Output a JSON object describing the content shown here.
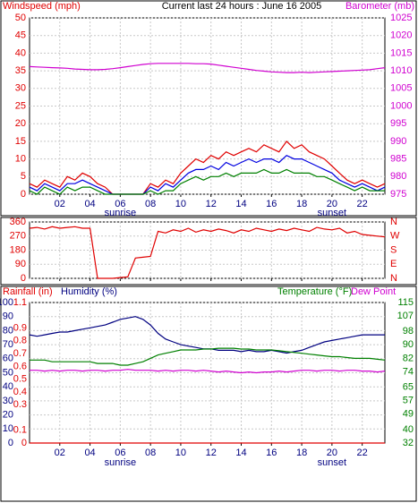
{
  "chart_data": [
    {
      "type": "line",
      "title": "Current last 24 hours : June 16 2005",
      "y_label": "Windspeed (mph)",
      "y2_label": "Barometer (mb)",
      "y_color": "#e00000",
      "y2_color": "#d000d0",
      "x": [
        0,
        0.5,
        1,
        1.5,
        2,
        2.5,
        3,
        3.5,
        4,
        4.5,
        5,
        5.5,
        6,
        6.5,
        7,
        7.5,
        8,
        8.5,
        9,
        9.5,
        10,
        10.5,
        11,
        11.5,
        12,
        12.5,
        13,
        13.5,
        14,
        14.5,
        15,
        15.5,
        16,
        16.5,
        17,
        17.5,
        18,
        18.5,
        19,
        19.5,
        20,
        20.5,
        21,
        21.5,
        22,
        22.5,
        23,
        23.5
      ],
      "xlim": [
        0,
        23.5
      ],
      "xticks": [
        {
          "value": 2,
          "label": "02"
        },
        {
          "value": 4,
          "label": "04"
        },
        {
          "value": 6,
          "label": "06"
        },
        {
          "value": 8,
          "label": "08"
        },
        10,
        12,
        14,
        16,
        18,
        20,
        22
      ],
      "ylim": [
        0,
        50
      ],
      "yticks": [
        0,
        5,
        10,
        15,
        20,
        25,
        30,
        35,
        40,
        45,
        50
      ],
      "y2lim": [
        975,
        1025
      ],
      "y2ticks": [
        975,
        980,
        985,
        990,
        995,
        1000,
        1005,
        1010,
        1015,
        1020,
        1025
      ],
      "grid": true,
      "annotations": [
        {
          "text": "sunrise",
          "x": 6
        },
        {
          "text": "sunset",
          "x": 20
        }
      ],
      "series": [
        {
          "color": "#e00000",
          "values": [
            3,
            2,
            4,
            3,
            2,
            5,
            4,
            6,
            5,
            3,
            2,
            0,
            0,
            0,
            0,
            0,
            3,
            2,
            4,
            3,
            6,
            8,
            10,
            9,
            11,
            10,
            12,
            11,
            12,
            13,
            12,
            14,
            13,
            12,
            15,
            13,
            14,
            12,
            11,
            10,
            8,
            6,
            4,
            3,
            4,
            3,
            2,
            3
          ]
        },
        {
          "color": "#0000e0",
          "values": [
            2,
            1,
            3,
            2,
            1,
            3,
            3,
            4,
            3,
            2,
            1,
            0,
            0,
            0,
            0,
            0,
            2,
            1,
            3,
            2,
            4,
            6,
            7,
            7,
            8,
            7,
            9,
            8,
            9,
            10,
            9,
            10,
            10,
            9,
            11,
            10,
            10,
            9,
            8,
            7,
            6,
            4,
            3,
            2,
            3,
            2,
            1,
            2
          ]
        },
        {
          "color": "#008000",
          "values": [
            1,
            0,
            2,
            1,
            0,
            2,
            1,
            2,
            2,
            1,
            0,
            0,
            0,
            0,
            0,
            0,
            1,
            0,
            1,
            1,
            3,
            4,
            5,
            4,
            5,
            5,
            6,
            5,
            6,
            6,
            6,
            7,
            6,
            6,
            7,
            6,
            6,
            6,
            5,
            5,
            4,
            3,
            2,
            1,
            2,
            1,
            1,
            1
          ]
        },
        {
          "color": "#d000d0",
          "axis": "y2",
          "values": [
            1011.2,
            1011.1,
            1011,
            1010.9,
            1010.8,
            1010.7,
            1010.5,
            1010.4,
            1010.3,
            1010.3,
            1010.4,
            1010.6,
            1010.9,
            1011.2,
            1011.5,
            1011.8,
            1012,
            1012.1,
            1012.1,
            1012.1,
            1012.1,
            1012.1,
            1012,
            1012,
            1011.9,
            1011.6,
            1011.3,
            1011,
            1010.7,
            1010.4,
            1010.1,
            1009.9,
            1009.7,
            1009.6,
            1009.5,
            1009.5,
            1009.6,
            1009.5,
            1009.6,
            1009.7,
            1009.8,
            1009.9,
            1010,
            1010.1,
            1010.2,
            1010.3,
            1010.6,
            1010.9
          ]
        }
      ]
    },
    {
      "type": "line",
      "y_color": "#e00000",
      "y2_color": "#e00000",
      "x": [
        0,
        0.5,
        1,
        1.5,
        2,
        2.5,
        3,
        3.5,
        4,
        4.5,
        5,
        5.5,
        6,
        6.5,
        7,
        7.5,
        8,
        8.5,
        9,
        9.5,
        10,
        10.5,
        11,
        11.5,
        12,
        12.5,
        13,
        13.5,
        14,
        14.5,
        15,
        15.5,
        16,
        16.5,
        17,
        17.5,
        18,
        18.5,
        19,
        19.5,
        20,
        20.5,
        21,
        21.5,
        22,
        22.5,
        23,
        23.5
      ],
      "xlim": [
        0,
        23.5
      ],
      "xticks": [
        2,
        4,
        6,
        8,
        10,
        12,
        14,
        16,
        18,
        20,
        22
      ],
      "ylim": [
        0,
        360
      ],
      "yticks": [
        0,
        90,
        180,
        270,
        360
      ],
      "y2lim": [
        0,
        360
      ],
      "y2ticks": [
        {
          "value": 0,
          "label": "N"
        },
        {
          "value": 90,
          "label": "E"
        },
        {
          "value": 180,
          "label": "S"
        },
        {
          "value": 270,
          "label": "W"
        },
        {
          "value": 360,
          "label": "N"
        }
      ],
      "grid": true,
      "series": [
        {
          "color": "#e00000",
          "values": [
            320,
            325,
            315,
            330,
            320,
            325,
            330,
            320,
            320,
            0,
            0,
            0,
            5,
            10,
            130,
            135,
            140,
            300,
            290,
            310,
            300,
            320,
            295,
            310,
            300,
            315,
            305,
            290,
            310,
            300,
            320,
            310,
            300,
            315,
            305,
            320,
            310,
            300,
            325,
            315,
            310,
            320,
            290,
            300,
            280,
            275,
            270,
            265
          ]
        }
      ]
    },
    {
      "type": "line",
      "y_label": "Humidity (%)",
      "y3_label": "Rainfall (in)",
      "y2_label": "Temperature (°F)",
      "y_color": "#000080",
      "y3_color": "#e00000",
      "y2_color": "#008000",
      "x": [
        0,
        0.5,
        1,
        1.5,
        2,
        2.5,
        3,
        3.5,
        4,
        4.5,
        5,
        5.5,
        6,
        6.5,
        7,
        7.5,
        8,
        8.5,
        9,
        9.5,
        10,
        10.5,
        11,
        11.5,
        12,
        12.5,
        13,
        13.5,
        14,
        14.5,
        15,
        15.5,
        16,
        16.5,
        17,
        17.5,
        18,
        18.5,
        19,
        19.5,
        20,
        20.5,
        21,
        21.5,
        22,
        22.5,
        23,
        23.5
      ],
      "xlim": [
        0,
        23.5
      ],
      "xticks": [
        {
          "value": 2,
          "label": "02"
        },
        {
          "value": 4,
          "label": "04"
        },
        {
          "value": 6,
          "label": "06"
        },
        {
          "value": 8,
          "label": "08"
        },
        10,
        12,
        14,
        16,
        18,
        20,
        22
      ],
      "ylim": [
        0,
        100
      ],
      "yticks": [
        0,
        10,
        20,
        30,
        40,
        50,
        60,
        70,
        80,
        90,
        100
      ],
      "y3lim": [
        0,
        1.1
      ],
      "y3ticks": [
        0,
        0.1,
        0.3,
        0.4,
        0.5,
        0.6,
        0.7,
        0.8,
        0.9,
        1.1
      ],
      "y2lim": [
        32,
        115
      ],
      "y2ticks": [
        32,
        40,
        49,
        57,
        65,
        74,
        82,
        90,
        98,
        107,
        115
      ],
      "grid": true,
      "annotations": [
        {
          "text": "sunrise",
          "x": 6
        },
        {
          "text": "sunset",
          "x": 20
        }
      ],
      "series": [
        {
          "color": "#e00000",
          "axis": "y3",
          "values": [
            0,
            0,
            0,
            0,
            0,
            0,
            0,
            0,
            0,
            0,
            0,
            0,
            0,
            0,
            0,
            0,
            0,
            0,
            0,
            0,
            0,
            0,
            0,
            0,
            0,
            0,
            0,
            0,
            0,
            0,
            0,
            0,
            0,
            0,
            0,
            0,
            0,
            0,
            0,
            0,
            0,
            0,
            0,
            0,
            0,
            0,
            0,
            0
          ]
        },
        {
          "color": "#000080",
          "values": [
            77,
            76,
            77,
            78,
            79,
            79,
            80,
            81,
            82,
            83,
            84,
            86,
            88,
            89,
            90,
            88,
            84,
            78,
            74,
            72,
            70,
            69,
            68,
            67,
            67,
            66,
            66,
            66,
            65,
            66,
            65,
            65,
            66,
            65,
            64,
            65,
            66,
            68,
            70,
            72,
            73,
            74,
            75,
            76,
            77,
            77,
            77,
            77
          ]
        },
        {
          "color": "#008000",
          "axis": "y2",
          "values": [
            81,
            81,
            81,
            80,
            80,
            80,
            80,
            80,
            80,
            79,
            79,
            79,
            78,
            78,
            79,
            80,
            82,
            84,
            85,
            86,
            87,
            87,
            87,
            87.5,
            87.5,
            88,
            88,
            88,
            87.5,
            87.5,
            87,
            87,
            87,
            86.5,
            86,
            85.5,
            85,
            84.5,
            84,
            83.5,
            83,
            83,
            82.5,
            82,
            82,
            82,
            81.5,
            81
          ]
        },
        {
          "name": "Dew Point",
          "color": "#d000d0",
          "axis": "y2",
          "values": [
            75,
            75,
            74.5,
            75,
            74.5,
            75,
            75,
            74.5,
            75,
            75,
            74.5,
            75,
            75,
            75.5,
            75,
            75,
            75,
            74.5,
            75,
            74.5,
            75,
            75,
            74.5,
            75,
            74.5,
            74,
            74.5,
            74,
            73.5,
            74,
            73.5,
            74,
            74,
            74.5,
            74,
            74.5,
            75,
            75,
            74.5,
            75,
            75,
            74.5,
            75,
            75,
            74.5,
            74.5,
            74,
            74.5
          ]
        }
      ]
    }
  ]
}
